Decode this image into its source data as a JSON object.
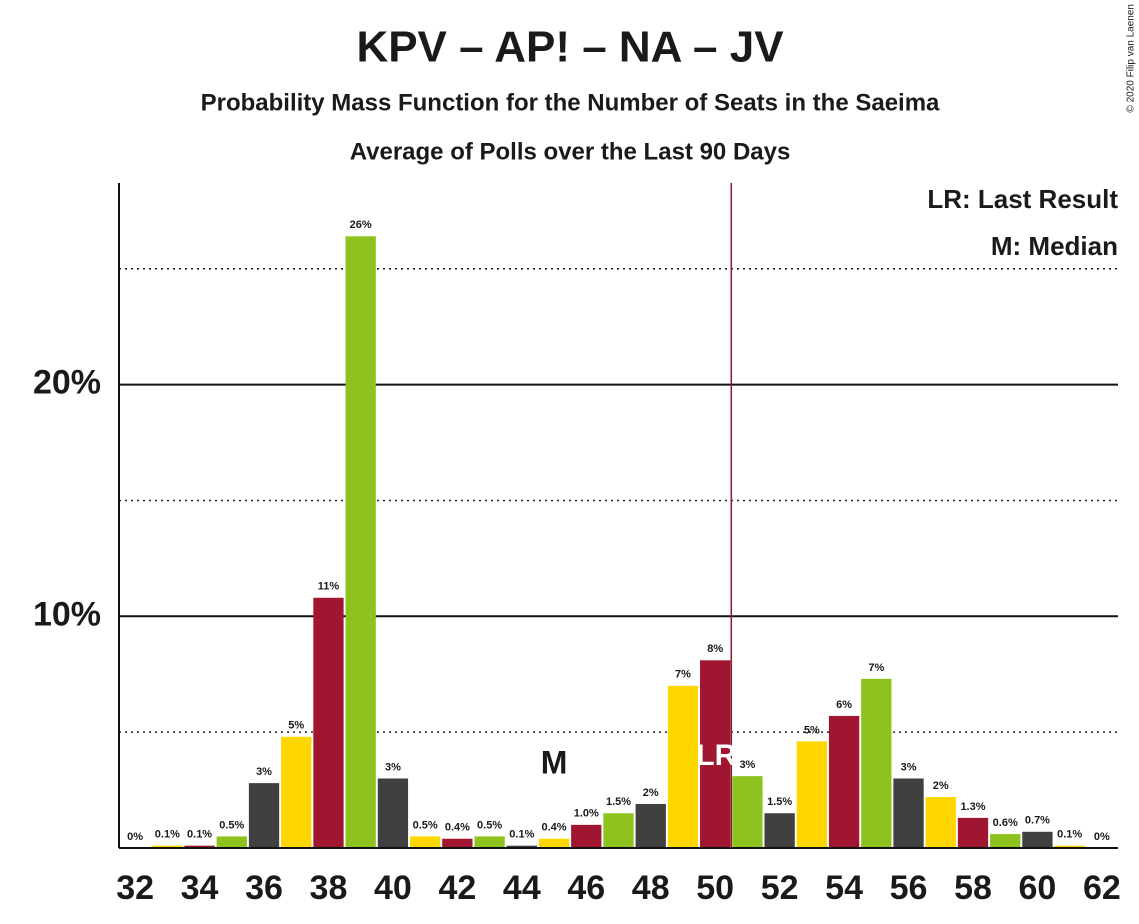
{
  "chart_data": {
    "type": "bar",
    "title": "KPV – AP! – NA – JV",
    "subtitle": "Probability Mass Function for the Number of Seats in the Saeima",
    "subtitle2": "Average of Polls over the Last 90 Days",
    "copyright": "© 2020 Filip van Laenen",
    "x": [
      32,
      33,
      34,
      35,
      36,
      37,
      38,
      39,
      40,
      41,
      42,
      43,
      44,
      45,
      46,
      47,
      48,
      49,
      50,
      51,
      52,
      53,
      54,
      55,
      56,
      57,
      58,
      59,
      60,
      61,
      62
    ],
    "values": [
      0,
      0.1,
      0.1,
      0.5,
      2.8,
      4.8,
      10.8,
      26.4,
      3.0,
      0.5,
      0.4,
      0.5,
      0.1,
      0.4,
      1.0,
      1.5,
      1.9,
      7.0,
      8.1,
      3.1,
      1.5,
      4.6,
      5.7,
      7.3,
      3.0,
      2.2,
      1.3,
      0.6,
      0.7,
      0.1,
      0
    ],
    "value_labels": [
      "0%",
      "0.1%",
      "0.1%",
      "0.5%",
      "3%",
      "5%",
      "11%",
      "26%",
      "3%",
      "0.5%",
      "0.4%",
      "0.5%",
      "0.1%",
      "0.4%",
      "1.0%",
      "1.5%",
      "2%",
      "7%",
      "8%",
      "3%",
      "1.5%",
      "5%",
      "6%",
      "7%",
      "3%",
      "2%",
      "1.3%",
      "0.6%",
      "0.7%",
      "0.1%",
      "0%"
    ],
    "color_cycle": [
      "#404040",
      "#FFD700",
      "#A0152F",
      "#8DC21F"
    ],
    "xlim": [
      31.5,
      62.5
    ],
    "xticks": [
      32,
      34,
      36,
      38,
      40,
      42,
      44,
      46,
      48,
      50,
      52,
      54,
      56,
      58,
      60,
      62
    ],
    "ylim": [
      0,
      28.7
    ],
    "yticks": [
      {
        "value": 10,
        "label": "10%"
      },
      {
        "value": 20,
        "label": "20%"
      }
    ],
    "minor_yticks": [
      5,
      15,
      25
    ],
    "last_result": 50.5,
    "last_result_label": "LR",
    "median": 45,
    "median_label": "M",
    "legend": [
      "LR: Last Result",
      "M: Median"
    ]
  }
}
